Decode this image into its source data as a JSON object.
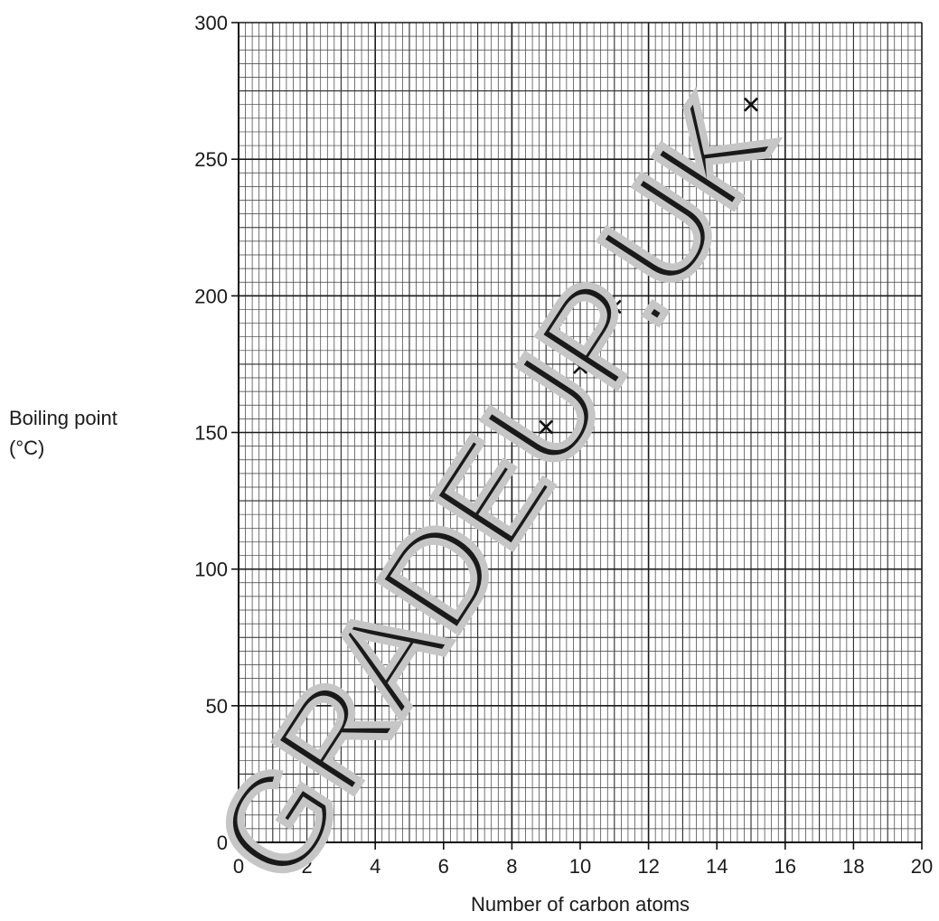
{
  "chart_data": {
    "type": "scatter",
    "xlabel": "Number of carbon atoms",
    "ylabel_lines": [
      "Boiling point",
      "(°C)"
    ],
    "xlim": [
      0,
      20
    ],
    "ylim": [
      0,
      300
    ],
    "x_ticks": [
      0,
      2,
      4,
      6,
      8,
      10,
      12,
      14,
      16,
      18,
      20
    ],
    "y_ticks": [
      0,
      50,
      100,
      150,
      200,
      250,
      300
    ],
    "grid": true,
    "marker": "cross",
    "points": [
      {
        "x": 9,
        "y": 152
      },
      {
        "x": 10,
        "y": 174
      },
      {
        "x": 11,
        "y": 196
      },
      {
        "x": 15,
        "y": 270
      }
    ]
  },
  "watermark": "GRADEUP.UK"
}
